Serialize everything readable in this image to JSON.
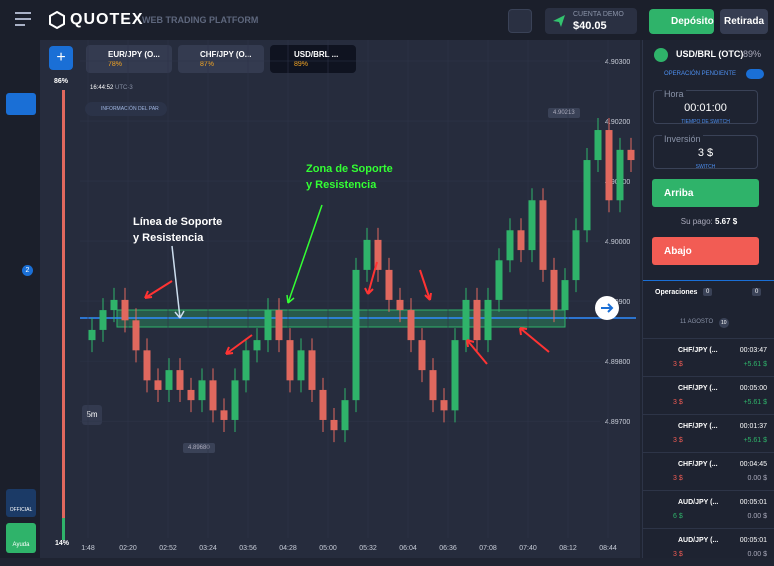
{
  "header": {
    "logo": "QUOTEX",
    "subtitle": "WEB TRADING PLATFORM",
    "account_label": "CUENTA DEMO",
    "balance": "$40.05",
    "deposit": "Depósito",
    "withdraw": "Retirada"
  },
  "tabs": [
    {
      "pair": "EUR/JPY (O...",
      "payout": "78%"
    },
    {
      "pair": "CHF/JPY (O...",
      "payout": "87%"
    },
    {
      "pair": "USD/BRL ...",
      "payout": "89%"
    }
  ],
  "sidebar": {
    "badge": "2",
    "up_percent": "86%",
    "down_percent": "14%",
    "official": "OFFICIAL",
    "help": "Ayuda"
  },
  "chart_info": {
    "time": "16:44:52",
    "timezone": "UTC-3",
    "pair_info": "INFORMACIÓN DEL PAR",
    "timeframe": "5m",
    "high_label": "4.90213",
    "low_label": "4.89680"
  },
  "annotations": {
    "zone": [
      "Zona de Soporte",
      "y Resistencia"
    ],
    "line": [
      "Línea de Soporte",
      "y Resistencia"
    ]
  },
  "chart_data": {
    "type": "candlestick",
    "open": [
      4.89835,
      4.89852,
      4.89885,
      4.89902,
      4.89868,
      4.89818,
      4.89768,
      4.89752,
      4.89785,
      4.89752,
      4.89735,
      4.89768,
      4.89718,
      4.89702,
      4.89768,
      4.89818,
      4.89835,
      4.89885,
      4.89835,
      4.89768,
      4.89818,
      4.89752,
      4.89702,
      4.89685,
      4.89735,
      4.89952,
      4.90002,
      4.89952,
      4.89902,
      4.89885,
      4.89835,
      4.89785,
      4.89735,
      4.89718,
      4.89835,
      4.89902,
      4.89835,
      4.89902,
      4.89968,
      4.90018,
      4.89985,
      4.90068,
      4.89952,
      4.89885,
      4.89935,
      4.90018,
      4.90135,
      4.90185,
      4.90068,
      4.90152
    ],
    "high": [
      4.89872,
      4.89905,
      4.89922,
      4.89922,
      4.89888,
      4.89838,
      4.89788,
      4.89805,
      4.89805,
      4.89772,
      4.89788,
      4.89788,
      4.89738,
      4.89788,
      4.89838,
      4.89855,
      4.89905,
      4.89905,
      4.89855,
      4.89838,
      4.89838,
      4.89772,
      4.89722,
      4.89755,
      4.89972,
      4.90022,
      4.90022,
      4.89972,
      4.89922,
      4.89905,
      4.89855,
      4.89805,
      4.89755,
      4.89855,
      4.89922,
      4.89922,
      4.89922,
      4.89988,
      4.90038,
      4.90038,
      4.90088,
      4.90088,
      4.89972,
      4.89955,
      4.90038,
      4.90155,
      4.90205,
      4.90205,
      4.90172,
      4.90172
    ],
    "low": [
      4.89815,
      4.89832,
      4.89865,
      4.89848,
      4.89798,
      4.89748,
      4.89732,
      4.89732,
      4.89732,
      4.89715,
      4.89715,
      4.89698,
      4.89682,
      4.89682,
      4.89748,
      4.89798,
      4.89815,
      4.89815,
      4.89748,
      4.89748,
      4.89732,
      4.89682,
      4.89665,
      4.89665,
      4.89715,
      4.89932,
      4.89932,
      4.89882,
      4.89865,
      4.89815,
      4.89765,
      4.89715,
      4.89698,
      4.89698,
      4.89815,
      4.89815,
      4.89815,
      4.89882,
      4.89948,
      4.89965,
      4.89965,
      4.89932,
      4.89865,
      4.89865,
      4.89915,
      4.89998,
      4.90115,
      4.90048,
      4.90048,
      4.90115
    ],
    "close": [
      4.89852,
      4.89885,
      4.89902,
      4.89868,
      4.89818,
      4.89768,
      4.89752,
      4.89785,
      4.89752,
      4.89735,
      4.89768,
      4.89718,
      4.89702,
      4.89768,
      4.89818,
      4.89835,
      4.89885,
      4.89835,
      4.89768,
      4.89818,
      4.89752,
      4.89702,
      4.89685,
      4.89735,
      4.89952,
      4.90002,
      4.89952,
      4.89902,
      4.89885,
      4.89835,
      4.89785,
      4.89735,
      4.89718,
      4.89835,
      4.89902,
      4.89835,
      4.89902,
      4.89968,
      4.90018,
      4.89985,
      4.90068,
      4.89952,
      4.89885,
      4.89935,
      4.90018,
      4.90135,
      4.90185,
      4.90068,
      4.90152,
      4.90135
    ],
    "up_color": "#2fb36a",
    "down_color": "#e0685e",
    "ylim": [
      4.89502,
      4.90335
    ],
    "yticks": [
      {
        "value": 4.897,
        "label": "4.89700"
      },
      {
        "value": 4.898,
        "label": "4.89800"
      },
      {
        "value": 4.899,
        "label": "4.89900"
      },
      {
        "value": 4.9,
        "label": "4.90000"
      },
      {
        "value": 4.901,
        "label": "4.90100"
      },
      {
        "value": 4.902,
        "label": "4.90200"
      },
      {
        "value": 4.903,
        "label": "4.90300"
      }
    ],
    "time_labels": [
      "1:48",
      "02:20",
      "02:52",
      "03:24",
      "03:56",
      "04:28",
      "05:00",
      "05:32",
      "06:04",
      "06:36",
      "07:08",
      "07:40",
      "08:12",
      "08:44"
    ]
  },
  "panel": {
    "asset": "USD/BRL (OTC)",
    "payout": "89%",
    "pending": "OPERACIÓN PENDIENTE",
    "time_label": "Hora",
    "time_value": "00:01:00",
    "time_switch": "TIEMPO DE SWITCH",
    "invest_label": "Inversión",
    "invest_value": "3 $",
    "invest_switch": "SWITCH",
    "up": "Arriba",
    "payout_label": "Su pago:",
    "payout_value": "5.67 $",
    "down": "Abajo",
    "operations": "Operaciones",
    "ops_count": "0",
    "ops_count2": "0",
    "date": "11 AGOSTO",
    "date_count": "10",
    "trades": [
      {
        "pair": "CHF/JPY (...",
        "time": "00:03:47",
        "amount": "3 $",
        "result": "+5.61 $"
      },
      {
        "pair": "CHF/JPY (...",
        "time": "00:05:00",
        "amount": "3 $",
        "result": "+5.61 $"
      },
      {
        "pair": "CHF/JPY (...",
        "time": "00:01:37",
        "amount": "3 $",
        "result": "+5.61 $"
      },
      {
        "pair": "CHF/JPY (...",
        "time": "00:04:45",
        "amount": "3 $",
        "result": "0.00 $"
      },
      {
        "pair": "AUD/JPY (...",
        "time": "00:05:01",
        "amount": "6 $",
        "result": "0.00 $"
      },
      {
        "pair": "AUD/JPY (...",
        "time": "00:05:01",
        "amount": "3 $",
        "result": "0.00 $"
      }
    ]
  }
}
